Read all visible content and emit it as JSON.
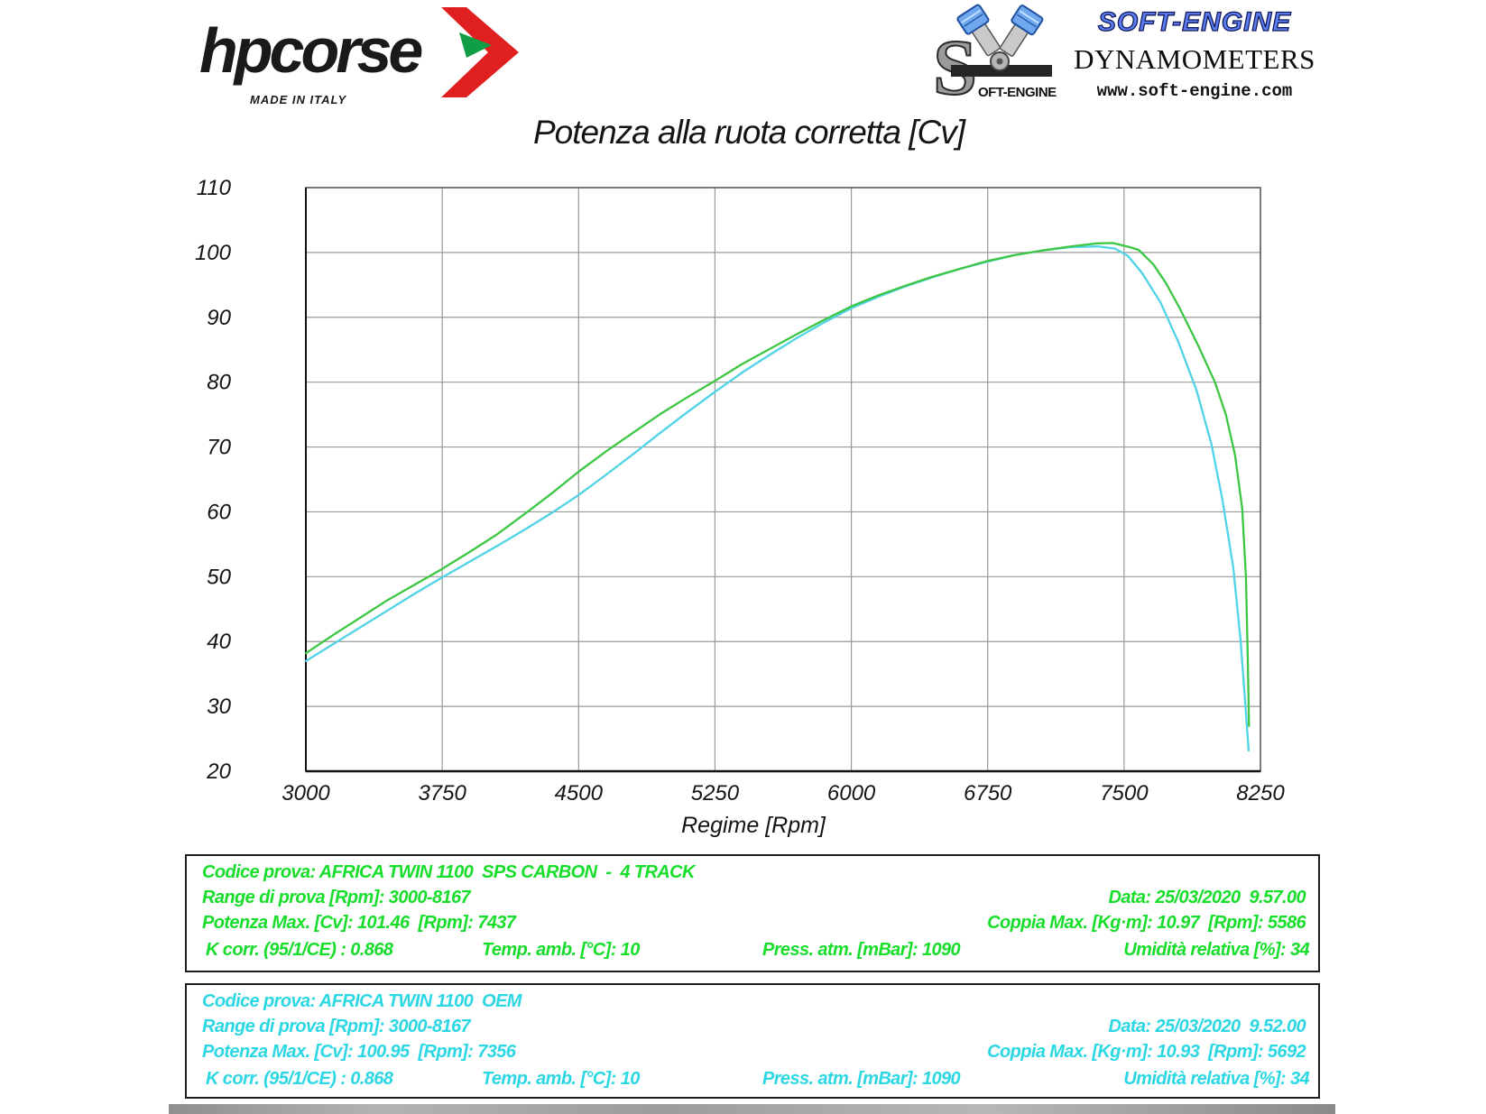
{
  "header": {
    "hpcorse": {
      "brand": "hpcorse",
      "tagline": "MADE IN ITALY",
      "arrow_red": "#e02020",
      "arrow_green": "#0f9d45"
    },
    "softengine": {
      "brand": "SOFT-ENGINE",
      "s_inline_text": "OFT-ENGINE",
      "subtitle": "DYNAMOMETERS",
      "website": "www.soft-engine.com",
      "brand_blue": "#5b7bf0"
    }
  },
  "chart_data": {
    "type": "line",
    "title": "Potenza alla ruota corretta [Cv]",
    "xlabel": "Regime [Rpm]",
    "ylabel": "",
    "xlim": [
      3000,
      8250
    ],
    "ylim": [
      20,
      110
    ],
    "x_ticks": [
      3000,
      3750,
      4500,
      5250,
      6000,
      6750,
      7500,
      8250
    ],
    "y_ticks": [
      20,
      30,
      40,
      50,
      60,
      70,
      80,
      90,
      100,
      110
    ],
    "grid": true,
    "legend_position": "none",
    "grid_color": "#999999",
    "border_color": "#555555",
    "axis_color": "#111111",
    "series": [
      {
        "id": "oem",
        "name": "AFRICA TWIN 1100 OEM",
        "color": "#4fd3e6",
        "peak_power_cv": 100.95,
        "peak_power_rpm": 7356,
        "points": [
          [
            3000,
            37.0
          ],
          [
            3150,
            39.6
          ],
          [
            3300,
            42.2
          ],
          [
            3450,
            44.8
          ],
          [
            3600,
            47.4
          ],
          [
            3750,
            49.9
          ],
          [
            3900,
            52.3
          ],
          [
            4050,
            54.7
          ],
          [
            4200,
            57.2
          ],
          [
            4350,
            59.8
          ],
          [
            4500,
            62.6
          ],
          [
            4650,
            65.7
          ],
          [
            4800,
            68.9
          ],
          [
            4950,
            72.2
          ],
          [
            5100,
            75.4
          ],
          [
            5250,
            78.5
          ],
          [
            5400,
            81.5
          ],
          [
            5550,
            84.2
          ],
          [
            5700,
            86.8
          ],
          [
            5850,
            89.2
          ],
          [
            6000,
            91.4
          ],
          [
            6150,
            93.2
          ],
          [
            6300,
            94.8
          ],
          [
            6450,
            96.2
          ],
          [
            6600,
            97.5
          ],
          [
            6750,
            98.6
          ],
          [
            6900,
            99.6
          ],
          [
            7050,
            100.3
          ],
          [
            7200,
            100.8
          ],
          [
            7356,
            100.95
          ],
          [
            7450,
            100.6
          ],
          [
            7520,
            99.5
          ],
          [
            7600,
            96.8
          ],
          [
            7700,
            92.3
          ],
          [
            7800,
            86.1
          ],
          [
            7900,
            78.6
          ],
          [
            7980,
            70.5
          ],
          [
            8040,
            62.0
          ],
          [
            8100,
            51.5
          ],
          [
            8140,
            40.5
          ],
          [
            8165,
            31.0
          ],
          [
            8185,
            23.2
          ]
        ]
      },
      {
        "id": "sps_carbon",
        "name": "AFRICA TWIN 1100 SPS CARBON - 4 TRACK",
        "color": "#3dc644",
        "peak_power_cv": 101.46,
        "peak_power_rpm": 7437,
        "points": [
          [
            3000,
            38.2
          ],
          [
            3150,
            41.0
          ],
          [
            3300,
            43.7
          ],
          [
            3450,
            46.4
          ],
          [
            3600,
            48.8
          ],
          [
            3750,
            51.2
          ],
          [
            3900,
            53.8
          ],
          [
            4050,
            56.5
          ],
          [
            4200,
            59.6
          ],
          [
            4350,
            62.8
          ],
          [
            4500,
            66.2
          ],
          [
            4650,
            69.3
          ],
          [
            4800,
            72.2
          ],
          [
            4950,
            75.1
          ],
          [
            5100,
            77.7
          ],
          [
            5250,
            80.2
          ],
          [
            5400,
            82.8
          ],
          [
            5550,
            85.1
          ],
          [
            5700,
            87.4
          ],
          [
            5850,
            89.6
          ],
          [
            6000,
            91.7
          ],
          [
            6150,
            93.4
          ],
          [
            6300,
            94.9
          ],
          [
            6450,
            96.3
          ],
          [
            6600,
            97.5
          ],
          [
            6750,
            98.7
          ],
          [
            6900,
            99.6
          ],
          [
            7050,
            100.3
          ],
          [
            7200,
            100.9
          ],
          [
            7350,
            101.4
          ],
          [
            7437,
            101.46
          ],
          [
            7520,
            100.9
          ],
          [
            7580,
            100.4
          ],
          [
            7660,
            98.2
          ],
          [
            7730,
            95.3
          ],
          [
            7810,
            91.2
          ],
          [
            7910,
            85.5
          ],
          [
            8000,
            80.0
          ],
          [
            8060,
            75.0
          ],
          [
            8110,
            68.8
          ],
          [
            8150,
            60.5
          ],
          [
            8170,
            50.0
          ],
          [
            8180,
            38.0
          ],
          [
            8187,
            27.0
          ]
        ]
      }
    ]
  },
  "info_boxes": [
    {
      "id": "sps",
      "color": "#17dd2b",
      "codice": "Codice prova: AFRICA TWIN 1100  SPS CARBON  -  4 TRACK",
      "range": "Range di prova [Rpm]: 3000-8167",
      "data": "Data: 25/03/2020  9.57.00",
      "potenza": "Potenza Max. [Cv]: 101.46  [Rpm]: 7437",
      "coppia": "Coppia Max. [Kg·m]: 10.97  [Rpm]: 5586",
      "kcorr": "K corr. (95/1/CE) : 0.868",
      "temp": "Temp. amb. [°C]: 10",
      "press": "Press. atm. [mBar]: 1090",
      "umidita": "Umidità relativa [%]: 34"
    },
    {
      "id": "oem",
      "color": "#2cd7e4",
      "codice": "Codice prova: AFRICA TWIN 1100  OEM",
      "range": "Range di prova [Rpm]: 3000-8167",
      "data": "Data: 25/03/2020  9.52.00",
      "potenza": "Potenza Max. [Cv]: 100.95  [Rpm]: 7356",
      "coppia": "Coppia Max. [Kg·m]: 10.93  [Rpm]: 5692",
      "kcorr": "K corr. (95/1/CE) : 0.868",
      "temp": "Temp. amb. [°C]: 10",
      "press": "Press. atm. [mBar]: 1090",
      "umidita": "Umidità relativa [%]: 34"
    }
  ]
}
